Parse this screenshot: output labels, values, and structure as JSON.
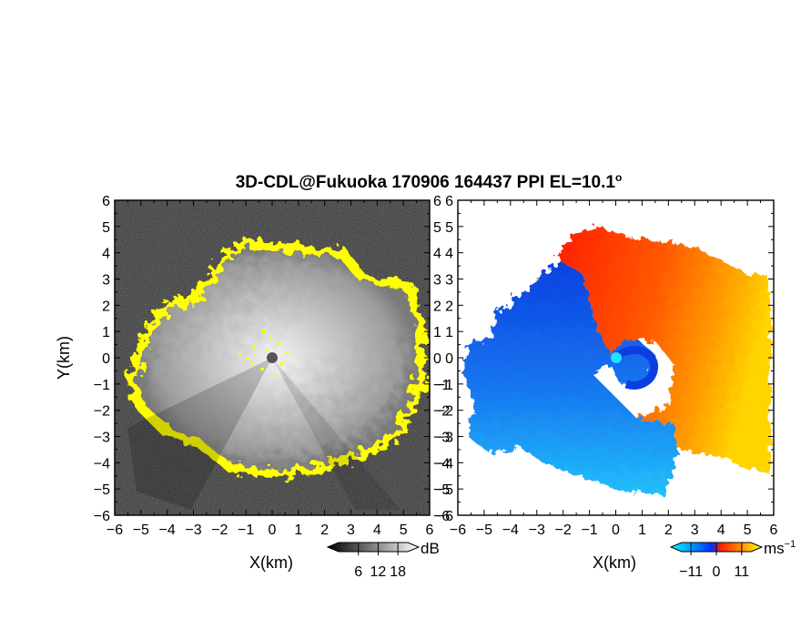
{
  "title": "3D-CDL@Fukuoka 170906 164437 PPI EL=10.1",
  "title_degree": "o",
  "chart_data": [
    {
      "type": "heatmap",
      "panel": "reflectivity",
      "xlabel": "X(km)",
      "ylabel": "Y(km)",
      "xlim": [
        -6,
        6
      ],
      "ylim": [
        -6,
        6
      ],
      "xticks": [
        "−6",
        "−5",
        "−4",
        "−3",
        "−2",
        "−1",
        "0",
        "1",
        "2",
        "3",
        "4",
        "5",
        "6"
      ],
      "yticks": [
        "6",
        "5",
        "4",
        "3",
        "2",
        "1",
        "0",
        "−1",
        "−2",
        "−3",
        "−4",
        "−5",
        "−6"
      ],
      "colorbar": {
        "label": "dB",
        "ticks": [
          "6",
          "12",
          "18"
        ],
        "tick_values": [
          6,
          12,
          18
        ],
        "range": [
          0,
          21
        ],
        "colors": [
          "#000000",
          "#ffffff"
        ]
      },
      "field": {
        "echo_radius_km": 4.6,
        "edge_color": "#ffff00",
        "inner_gray": "#bdbdbd",
        "outer_gray": "#2a2a2a",
        "radar_color": "#555555"
      }
    },
    {
      "type": "heatmap",
      "panel": "doppler_velocity",
      "xlabel": "X(km)",
      "ylabel": "",
      "xlim": [
        -6,
        6
      ],
      "ylim": [
        -6,
        6
      ],
      "xticks": [
        "−6",
        "−5",
        "−4",
        "−3",
        "−2",
        "−1",
        "0",
        "1",
        "2",
        "3",
        "4",
        "5",
        "6"
      ],
      "yticks": [
        "6",
        "5",
        "4",
        "3",
        "2",
        "1",
        "0",
        "−1",
        "−2",
        "−3",
        "−4",
        "−5",
        "−6"
      ],
      "colorbar": {
        "label": "ms",
        "label_sup": "−1",
        "ticks": [
          "−11",
          "0",
          "11"
        ],
        "tick_values": [
          -11,
          0,
          11
        ],
        "range": [
          -15,
          15
        ],
        "colors": [
          "#00ffff",
          "#0030ff",
          "#ff2000",
          "#ffff00"
        ]
      },
      "field": {
        "negative_colors": [
          "#0a3ee0",
          "#18a8f8"
        ],
        "positive_colors": [
          "#ff2000",
          "#ff9a00",
          "#ffd800"
        ],
        "radar_color": "#20e0ff"
      }
    }
  ]
}
